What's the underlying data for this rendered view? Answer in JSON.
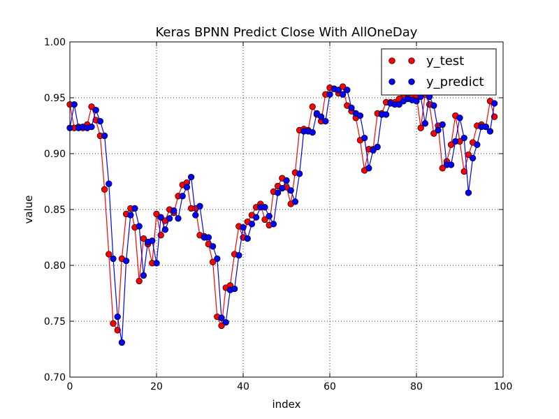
{
  "chart_data": {
    "type": "line",
    "title": "Keras BPNN Predict Close With AllOneDay",
    "xlabel": "index",
    "ylabel": "value",
    "xlim": [
      0,
      100
    ],
    "ylim": [
      0.7,
      1.0
    ],
    "xticks": [
      0,
      20,
      40,
      60,
      80,
      100
    ],
    "yticks": [
      0.7,
      0.75,
      0.8,
      0.85,
      0.9,
      0.95,
      1.0
    ],
    "xtick_labels": [
      "0",
      "20",
      "40",
      "60",
      "80",
      "100"
    ],
    "ytick_labels": [
      "0.70",
      "0.75",
      "0.80",
      "0.85",
      "0.90",
      "0.95",
      "1.00"
    ],
    "grid": true,
    "legend_position": "top-right",
    "series": [
      {
        "name": "y_test",
        "color": "#ff0000",
        "values": [
          0.944,
          0.923,
          0.924,
          0.923,
          0.926,
          0.942,
          0.93,
          0.916,
          0.868,
          0.81,
          0.748,
          0.742,
          0.806,
          0.846,
          0.851,
          0.834,
          0.786,
          0.824,
          0.819,
          0.802,
          0.846,
          0.827,
          0.84,
          0.85,
          0.847,
          0.862,
          0.872,
          0.874,
          0.851,
          0.851,
          0.827,
          0.826,
          0.819,
          0.803,
          0.754,
          0.746,
          0.78,
          0.782,
          0.81,
          0.835,
          0.825,
          0.839,
          0.845,
          0.852,
          0.855,
          0.841,
          0.836,
          0.866,
          0.871,
          0.878,
          0.87,
          0.855,
          0.883,
          0.921,
          0.922,
          0.921,
          0.942,
          0.935,
          0.929,
          0.953,
          0.959,
          0.958,
          0.954,
          0.96,
          0.943,
          0.938,
          0.932,
          0.912,
          0.885,
          0.904,
          0.904,
          0.936,
          0.936,
          0.946,
          0.946,
          0.946,
          0.949,
          0.953,
          0.954,
          0.951,
          0.952,
          0.923,
          0.953,
          0.944,
          0.918,
          0.925,
          0.887,
          0.893,
          0.908,
          0.934,
          0.911,
          0.884,
          0.899,
          0.91,
          0.925,
          0.926,
          0.924,
          0.947,
          0.933
        ]
      },
      {
        "name": "y_predict",
        "color": "#0000ff",
        "values": [
          0.923,
          0.944,
          0.923,
          0.924,
          0.923,
          0.924,
          0.939,
          0.929,
          0.916,
          0.873,
          0.806,
          0.754,
          0.731,
          0.804,
          0.845,
          0.851,
          0.835,
          0.791,
          0.821,
          0.822,
          0.802,
          0.843,
          0.832,
          0.842,
          0.849,
          0.842,
          0.862,
          0.87,
          0.879,
          0.845,
          0.853,
          0.825,
          0.825,
          0.817,
          0.806,
          0.753,
          0.749,
          0.778,
          0.779,
          0.809,
          0.834,
          0.824,
          0.837,
          0.843,
          0.852,
          0.852,
          0.844,
          0.837,
          0.865,
          0.869,
          0.876,
          0.867,
          0.857,
          0.882,
          0.92,
          0.92,
          0.919,
          0.936,
          0.933,
          0.929,
          0.953,
          0.958,
          0.957,
          0.953,
          0.957,
          0.941,
          0.936,
          0.934,
          0.914,
          0.887,
          0.903,
          0.906,
          0.935,
          0.935,
          0.945,
          0.944,
          0.944,
          0.947,
          0.949,
          0.948,
          0.947,
          0.951,
          0.927,
          0.951,
          0.943,
          0.921,
          0.926,
          0.89,
          0.89,
          0.911,
          0.932,
          0.914,
          0.865,
          0.896,
          0.908,
          0.924,
          0.924,
          0.92,
          0.945
        ]
      }
    ]
  }
}
